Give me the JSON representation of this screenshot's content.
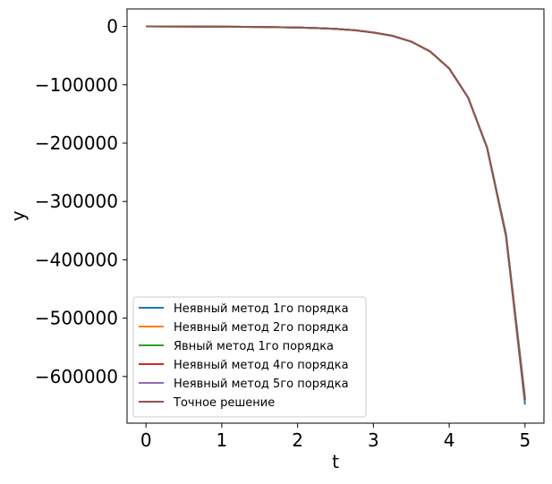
{
  "chart_data": {
    "type": "line",
    "title": "",
    "xlabel": "t",
    "ylabel": "y",
    "xlim": [
      -0.25,
      5.25
    ],
    "ylim": [
      -680000,
      30000
    ],
    "xticks": [
      0,
      1,
      2,
      3,
      4,
      5
    ],
    "xtick_labels": [
      "0",
      "1",
      "2",
      "3",
      "4",
      "5"
    ],
    "yticks": [
      0,
      -100000,
      -200000,
      -300000,
      -400000,
      -500000,
      -600000
    ],
    "ytick_labels": [
      "0",
      "−100000",
      "−200000",
      "−300000",
      "−400000",
      "−500000",
      "−600000"
    ],
    "legend_position": "bottom-left",
    "x": [
      0,
      0.5,
      1,
      1.5,
      2,
      2.25,
      2.5,
      2.75,
      3,
      3.25,
      3.5,
      3.75,
      4,
      4.25,
      4.5,
      4.75,
      5
    ],
    "series": [
      {
        "name": "Неявный метод 1го порядка",
        "color": "#1f77b4",
        "values": [
          0,
          -150,
          -350,
          -800,
          -1800,
          -2800,
          -4200,
          -6500,
          -10500,
          -16000,
          -26000,
          -43000,
          -72000,
          -122000,
          -208000,
          -360000,
          -648000
        ]
      },
      {
        "name": "Неявный метод 2го порядка",
        "color": "#ff7f0e",
        "values": [
          0,
          -150,
          -350,
          -800,
          -1800,
          -2800,
          -4200,
          -6500,
          -10500,
          -16000,
          -26000,
          -43000,
          -72000,
          -122000,
          -208000,
          -359000,
          -642000
        ]
      },
      {
        "name": "Явный метод 1го порядка",
        "color": "#2ca02c",
        "values": [
          0,
          -150,
          -350,
          -800,
          -1800,
          -2800,
          -4200,
          -6500,
          -10500,
          -16000,
          -26000,
          -43000,
          -72000,
          -122000,
          -207000,
          -356000,
          -636000
        ]
      },
      {
        "name": "Неявный метод 4го порядка",
        "color": "#d62728",
        "values": [
          0,
          -150,
          -350,
          -800,
          -1800,
          -2800,
          -4200,
          -6500,
          -10500,
          -16000,
          -26000,
          -43000,
          -72000,
          -122000,
          -208000,
          -359000,
          -641000
        ]
      },
      {
        "name": "Неявный метод 5го порядка",
        "color": "#9467bd",
        "values": [
          0,
          -150,
          -350,
          -800,
          -1800,
          -2800,
          -4200,
          -6500,
          -10500,
          -16000,
          -26000,
          -43000,
          -72000,
          -122000,
          -208000,
          -359000,
          -641000
        ]
      },
      {
        "name": "Точное решение",
        "color": "#8c564b",
        "values": [
          0,
          -150,
          -350,
          -800,
          -1800,
          -2800,
          -4200,
          -6500,
          -10500,
          -16000,
          -26000,
          -43000,
          -72000,
          -122000,
          -208000,
          -359000,
          -640000
        ]
      }
    ]
  }
}
